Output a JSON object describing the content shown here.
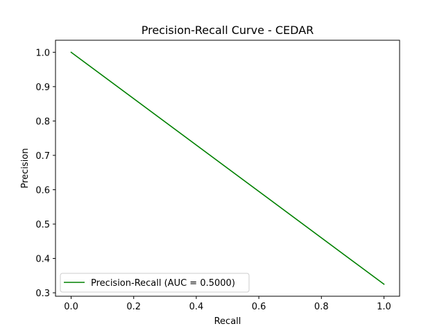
{
  "chart_data": {
    "type": "line",
    "title": "Precision-Recall Curve - CEDAR",
    "xlabel": "Recall",
    "ylabel": "Precision",
    "xlim": [
      -0.05,
      1.05
    ],
    "ylim": [
      0.29,
      1.035
    ],
    "xticks": [
      0.0,
      0.2,
      0.4,
      0.6,
      0.8,
      1.0
    ],
    "xtick_labels": [
      "0.0",
      "0.2",
      "0.4",
      "0.6",
      "0.8",
      "1.0"
    ],
    "yticks": [
      0.3,
      0.4,
      0.5,
      0.6,
      0.7,
      0.8,
      0.9,
      1.0
    ],
    "ytick_labels": [
      "0.3",
      "0.4",
      "0.5",
      "0.6",
      "0.7",
      "0.8",
      "0.9",
      "1.0"
    ],
    "grid": false,
    "legend_position": "lower-left",
    "series": [
      {
        "name": "Precision-Recall (AUC = 0.5000)",
        "color": "#008000",
        "x": [
          0.0,
          1.0
        ],
        "y": [
          1.0,
          0.325
        ]
      }
    ]
  }
}
